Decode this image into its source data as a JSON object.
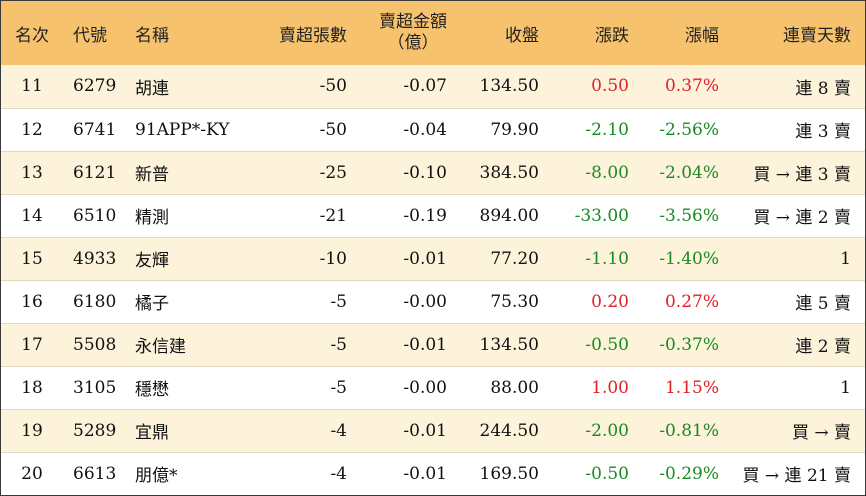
{
  "headers": {
    "rank": "名次",
    "code": "代號",
    "name": "名稱",
    "net_sell_lots": "賣超張數",
    "net_sell_amount_line1": "賣超金額",
    "net_sell_amount_line2": "（億）",
    "close": "收盤",
    "change": "漲跌",
    "change_pct": "漲幅",
    "streak": "連賣天數"
  },
  "colors": {
    "header_bg": "#f7c26e",
    "odd_row_bg": "#fdf2da",
    "up": "#e0202a",
    "down": "#1a8a24"
  },
  "rows": [
    {
      "rank": "11",
      "code": "6279",
      "name": "胡連",
      "lots": "-50",
      "amount": "-0.07",
      "close": "134.50",
      "change": "0.50",
      "pct": "0.37%",
      "dir": "up",
      "streak": "連 8 賣"
    },
    {
      "rank": "12",
      "code": "6741",
      "name": "91APP*-KY",
      "lots": "-50",
      "amount": "-0.04",
      "close": "79.90",
      "change": "-2.10",
      "pct": "-2.56%",
      "dir": "down",
      "streak": "連 3 賣"
    },
    {
      "rank": "13",
      "code": "6121",
      "name": "新普",
      "lots": "-25",
      "amount": "-0.10",
      "close": "384.50",
      "change": "-8.00",
      "pct": "-2.04%",
      "dir": "down",
      "streak": "買 → 連 3 賣"
    },
    {
      "rank": "14",
      "code": "6510",
      "name": "精測",
      "lots": "-21",
      "amount": "-0.19",
      "close": "894.00",
      "change": "-33.00",
      "pct": "-3.56%",
      "dir": "down",
      "streak": "買 → 連 2 賣"
    },
    {
      "rank": "15",
      "code": "4933",
      "name": "友輝",
      "lots": "-10",
      "amount": "-0.01",
      "close": "77.20",
      "change": "-1.10",
      "pct": "-1.40%",
      "dir": "down",
      "streak": "1"
    },
    {
      "rank": "16",
      "code": "6180",
      "name": "橘子",
      "lots": "-5",
      "amount": "-0.00",
      "close": "75.30",
      "change": "0.20",
      "pct": "0.27%",
      "dir": "up",
      "streak": "連 5 賣"
    },
    {
      "rank": "17",
      "code": "5508",
      "name": "永信建",
      "lots": "-5",
      "amount": "-0.01",
      "close": "134.50",
      "change": "-0.50",
      "pct": "-0.37%",
      "dir": "down",
      "streak": "連 2 賣"
    },
    {
      "rank": "18",
      "code": "3105",
      "name": "穩懋",
      "lots": "-5",
      "amount": "-0.00",
      "close": "88.00",
      "change": "1.00",
      "pct": "1.15%",
      "dir": "up",
      "streak": "1"
    },
    {
      "rank": "19",
      "code": "5289",
      "name": "宜鼎",
      "lots": "-4",
      "amount": "-0.01",
      "close": "244.50",
      "change": "-2.00",
      "pct": "-0.81%",
      "dir": "down",
      "streak": "買 → 賣"
    },
    {
      "rank": "20",
      "code": "6613",
      "name": "朋億*",
      "lots": "-4",
      "amount": "-0.01",
      "close": "169.50",
      "change": "-0.50",
      "pct": "-0.29%",
      "dir": "down",
      "streak": "買 → 連 21 賣"
    }
  ]
}
